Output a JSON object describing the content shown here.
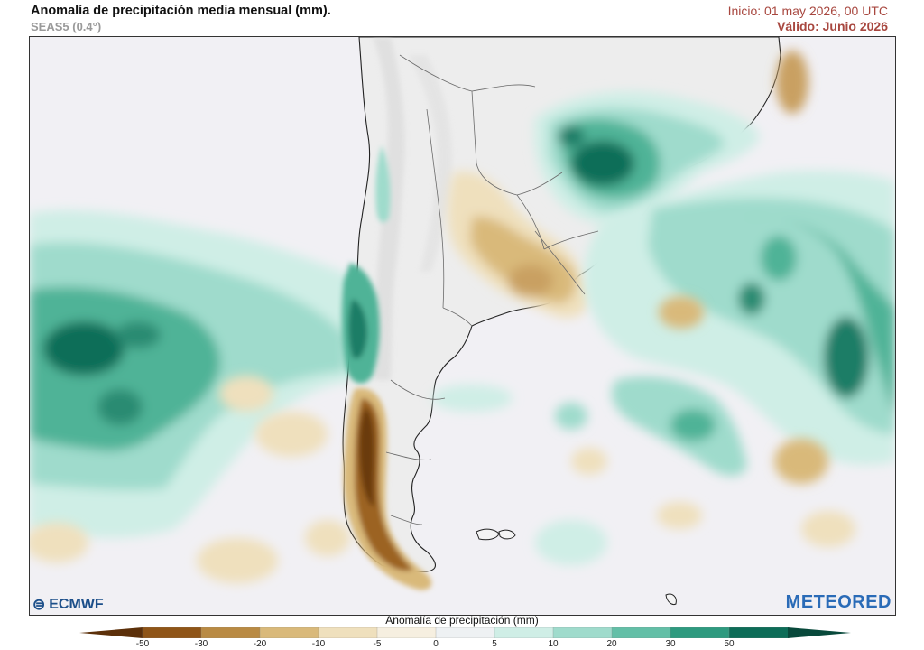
{
  "header": {
    "title": "Anomalía de precipitación media mensual (mm).",
    "subtitle": "SEAS5 (0.4°)",
    "init_label": "Inicio: 01 may 2026, 00 UTC",
    "valid_label": "Válido: Junio 2026"
  },
  "colorbar": {
    "title": "Anomalía de precipitación (mm)",
    "ticks": [
      "-50",
      "-30",
      "-20",
      "-10",
      "-5",
      "0",
      "5",
      "10",
      "20",
      "30",
      "50"
    ],
    "colors": [
      "#5c300a",
      "#8f5518",
      "#b98a43",
      "#d9b97a",
      "#efe0bd",
      "#f6efe0",
      "#eef1f3",
      "#cfeee6",
      "#9fdbcc",
      "#63bfa7",
      "#2e9a7f",
      "#0d6d58",
      "#08493b"
    ]
  },
  "logos": {
    "left": "ECMWF",
    "right": "METEORED"
  },
  "colors": {
    "ocean": "#f1f0f4",
    "land": "#ededed",
    "wet_light": "#cfeee6",
    "wet_mid": "#9fdbcc",
    "wet_high": "#4fb397",
    "wet_max": "#0e6e59",
    "dry_light": "#efe0bd",
    "dry_mid": "#d9b97a",
    "dry_high": "#9c6422",
    "dry_max": "#6b3b10",
    "title_red": "#a8473f"
  }
}
